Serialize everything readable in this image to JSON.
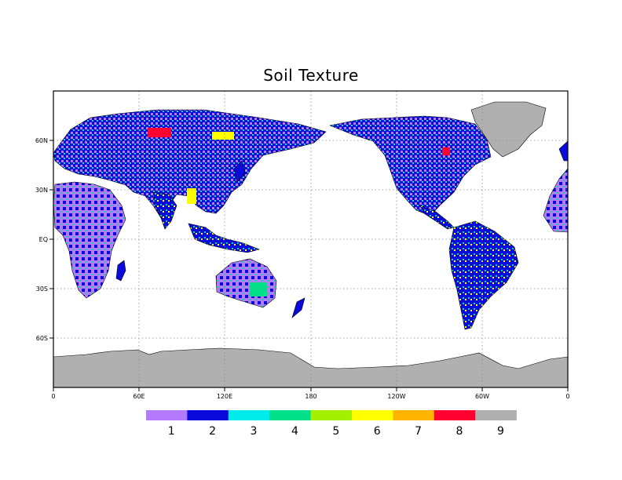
{
  "map": {
    "title": "Soil Texture",
    "x_ticks": [
      "0",
      "60E",
      "120E",
      "180",
      "120W",
      "60W",
      "0"
    ],
    "y_ticks": [
      "60N",
      "30N",
      "EQ",
      "30S",
      "60S"
    ],
    "x_lon_values": [
      0,
      60,
      120,
      180,
      240,
      300,
      360
    ],
    "y_lat_values": [
      60,
      30,
      0,
      -30,
      -60
    ],
    "lon_range": [
      0,
      360
    ],
    "lat_range": [
      -90,
      90
    ],
    "grid": "dotted"
  },
  "legend": {
    "categories": [
      "1",
      "2",
      "3",
      "4",
      "5",
      "6",
      "7",
      "8",
      "9"
    ],
    "colors": [
      "#b57bff",
      "#0a0adc",
      "#00ecec",
      "#00e08a",
      "#a4f000",
      "#ffff00",
      "#ffb400",
      "#ff0030",
      "#b0b0b0"
    ]
  },
  "colors": {
    "ocean": "#ffffff",
    "coast": "#000000",
    "antarctica": "#b0b0b0"
  }
}
